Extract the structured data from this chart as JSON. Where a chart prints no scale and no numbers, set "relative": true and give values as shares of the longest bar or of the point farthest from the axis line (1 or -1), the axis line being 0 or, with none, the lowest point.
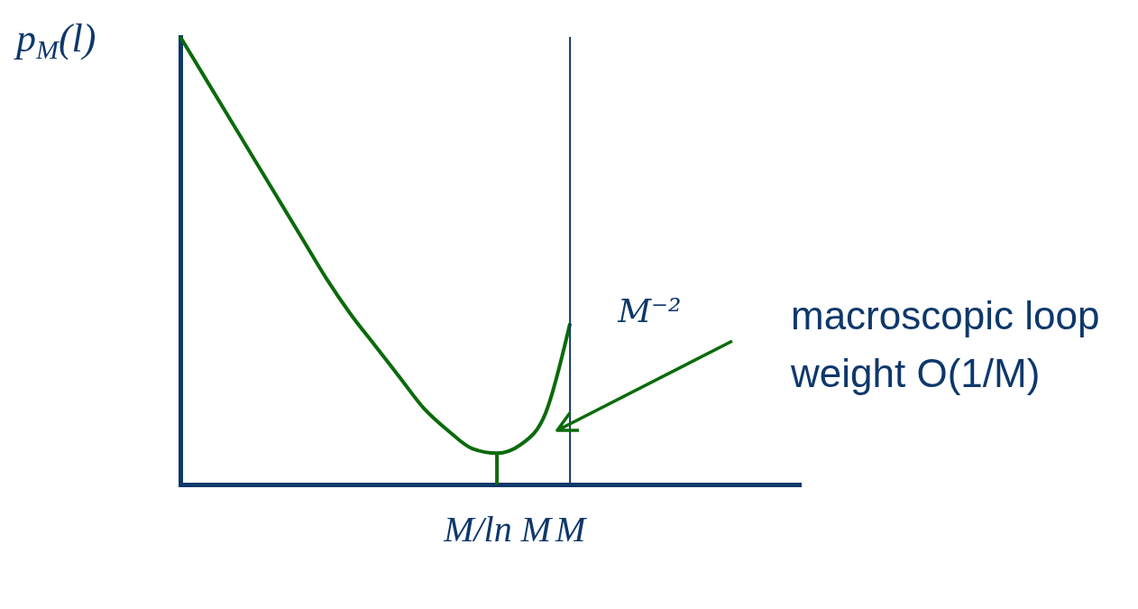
{
  "chart_data": {
    "type": "line",
    "relative": true,
    "ylabel": "p$_{M}$(l)",
    "categories": [
      null,
      null,
      null,
      null,
      null,
      null,
      null,
      null,
      null,
      null,
      null,
      null,
      null,
      "M/ln M",
      null,
      null,
      "M",
      null,
      null,
      null,
      null,
      null,
      null,
      null,
      null,
      null
    ],
    "series": [
      {
        "color": "#0b6a0b",
        "values": [
          1,
          0.91,
          0.82,
          0.73,
          0.64,
          0.55,
          0.46,
          0.38,
          0.31,
          0.24,
          0.17,
          0.12,
          0.08,
          0.07,
          0.09,
          0.16,
          0.36,
          null,
          null,
          null,
          null,
          null,
          null,
          null,
          null,
          null
        ]
      },
      {
        "color": "#0b6a0b",
        "x": [
          "M/ln M",
          "M/ln M"
        ],
        "values": [
          0,
          0.07
        ]
      }
    ],
    "ref_lines": [
      {
        "axis": "x",
        "value": "M",
        "color": "#0e386b"
      }
    ],
    "annotations": [
      {
        "text": "M⁻²",
        "x": "M",
        "y": 0.36
      },
      "macroscopic loop weight O(1/M)"
    ]
  }
}
